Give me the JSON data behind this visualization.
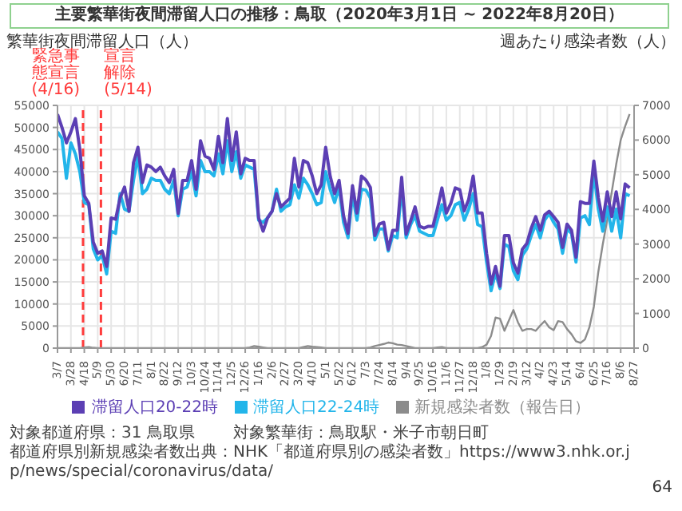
{
  "chart_data": {
    "type": "line",
    "title": "主要繁華街夜間滞留人口の推移：鳥取（2020年3月1日 ~ 2022年8月20日）",
    "ylabel": "繁華街夜間滞留人口（人）",
    "y2label": "週あたり感染者数（人）",
    "x": [
      "2020-03-07",
      "2020-03-14",
      "2020-03-21",
      "2020-03-28",
      "2020-04-04",
      "2020-04-11",
      "2020-04-18",
      "2020-04-25",
      "2020-05-02",
      "2020-05-09",
      "2020-05-16",
      "2020-05-23",
      "2020-05-30",
      "2020-06-06",
      "2020-06-13",
      "2020-06-20",
      "2020-06-27",
      "2020-07-04",
      "2020-07-11",
      "2020-07-18",
      "2020-07-25",
      "2020-08-01",
      "2020-08-08",
      "2020-08-15",
      "2020-08-22",
      "2020-08-29",
      "2020-09-05",
      "2020-09-12",
      "2020-09-19",
      "2020-09-26",
      "2020-10-03",
      "2020-10-10",
      "2020-10-17",
      "2020-10-24",
      "2020-10-31",
      "2020-11-07",
      "2020-11-14",
      "2020-11-21",
      "2020-11-28",
      "2020-12-05",
      "2020-12-12",
      "2020-12-19",
      "2020-12-26",
      "2021-01-02",
      "2021-01-09",
      "2021-01-16",
      "2021-01-23",
      "2021-01-30",
      "2021-02-06",
      "2021-02-13",
      "2021-02-20",
      "2021-02-27",
      "2021-03-06",
      "2021-03-13",
      "2021-03-20",
      "2021-03-27",
      "2021-04-03",
      "2021-04-10",
      "2021-04-17",
      "2021-04-24",
      "2021-05-01",
      "2021-05-08",
      "2021-05-15",
      "2021-05-22",
      "2021-05-29",
      "2021-06-05",
      "2021-06-12",
      "2021-06-19",
      "2021-06-26",
      "2021-07-03",
      "2021-07-10",
      "2021-07-17",
      "2021-07-24",
      "2021-07-31",
      "2021-08-07",
      "2021-08-14",
      "2021-08-21",
      "2021-08-28",
      "2021-09-04",
      "2021-09-11",
      "2021-09-18",
      "2021-09-25",
      "2021-10-02",
      "2021-10-09",
      "2021-10-16",
      "2021-10-23",
      "2021-10-30",
      "2021-11-06",
      "2021-11-13",
      "2021-11-20",
      "2021-11-27",
      "2021-12-04",
      "2021-12-11",
      "2021-12-18",
      "2021-12-25",
      "2022-01-01",
      "2022-01-08",
      "2022-01-15",
      "2022-01-22",
      "2022-01-29",
      "2022-02-05",
      "2022-02-12",
      "2022-02-19",
      "2022-02-26",
      "2022-03-05",
      "2022-03-12",
      "2022-03-19",
      "2022-03-26",
      "2022-04-02",
      "2022-04-09",
      "2022-04-16",
      "2022-04-23",
      "2022-04-30",
      "2022-05-07",
      "2022-05-14",
      "2022-05-21",
      "2022-05-28",
      "2022-06-04",
      "2022-06-11",
      "2022-06-18",
      "2022-06-25",
      "2022-07-02",
      "2022-07-09",
      "2022-07-16",
      "2022-07-23",
      "2022-07-30",
      "2022-08-06",
      "2022-08-13",
      "2022-08-20"
    ],
    "series": [
      {
        "name": "滞留人口20-22時",
        "color": "#5c3fb4",
        "values": [
          53000,
          50000,
          46500,
          49000,
          52000,
          45000,
          34500,
          32800,
          24000,
          21500,
          22000,
          18500,
          29500,
          29200,
          34000,
          36500,
          31000,
          42000,
          45500,
          37500,
          41500,
          41000,
          40000,
          41000,
          39000,
          37500,
          40500,
          30500,
          38000,
          38000,
          42500,
          36000,
          47000,
          43500,
          43000,
          40500,
          48000,
          42000,
          52000,
          42500,
          49000,
          39500,
          43000,
          42500,
          42500,
          29500,
          26500,
          29500,
          31000,
          35000,
          32000,
          33000,
          34000,
          43000,
          36500,
          42500,
          42000,
          39000,
          35000,
          37000,
          45500,
          39000,
          35000,
          38000,
          30000,
          26000,
          36800,
          30600,
          39000,
          38100,
          36400,
          25500,
          28100,
          28500,
          22400,
          26700,
          26700,
          38700,
          25800,
          28800,
          32000,
          27600,
          27200,
          27600,
          27600,
          31600,
          36300,
          30600,
          32800,
          36300,
          35900,
          31100,
          33700,
          39000,
          30600,
          30600,
          21500,
          14500,
          18500,
          14000,
          25500,
          25500,
          19300,
          17000,
          22400,
          23700,
          27200,
          29800,
          26700,
          30200,
          31000,
          29800,
          28500,
          22800,
          28100,
          26700,
          20600,
          33200,
          32800,
          32800,
          42400,
          34100,
          28800,
          35400,
          29800,
          35400,
          29300,
          37200,
          36300
        ]
      },
      {
        "name": "滞留人口22-24時",
        "color": "#22b5ea",
        "values": [
          49000,
          47500,
          38500,
          46500,
          44000,
          40000,
          33000,
          32500,
          22500,
          20000,
          21000,
          16800,
          26500,
          26000,
          35000,
          31500,
          31000,
          38000,
          43500,
          35000,
          36000,
          38500,
          38000,
          38000,
          36000,
          35000,
          38000,
          30000,
          36000,
          36500,
          40000,
          34500,
          42500,
          40000,
          40000,
          39000,
          44000,
          39500,
          47000,
          40000,
          44500,
          38500,
          41500,
          41000,
          40500,
          29000,
          28500,
          29500,
          31000,
          36000,
          31000,
          32000,
          32500,
          37000,
          34000,
          38500,
          37000,
          35000,
          32500,
          33000,
          40000,
          36000,
          33000,
          36500,
          28500,
          25000,
          34800,
          29000,
          36000,
          35800,
          34000,
          24500,
          27000,
          27000,
          22000,
          25500,
          25000,
          36500,
          25000,
          28000,
          30000,
          26500,
          26000,
          25500,
          25500,
          29000,
          32500,
          29000,
          30000,
          32500,
          33000,
          29000,
          31500,
          35000,
          28000,
          27500,
          19500,
          13000,
          17000,
          13500,
          23500,
          23000,
          17500,
          15500,
          21000,
          22500,
          25500,
          28000,
          25000,
          29000,
          30500,
          28500,
          27000,
          21500,
          27000,
          26000,
          19500,
          29500,
          30000,
          28000,
          40000,
          31500,
          26500,
          32000,
          26500,
          31500,
          25000,
          35000,
          34500
        ]
      },
      {
        "name": "新規感染者数（報告日）",
        "color": "#8c8c8c",
        "axis": "y2",
        "values": [
          0,
          0,
          0,
          0,
          0,
          0,
          20,
          30,
          10,
          0,
          0,
          0,
          0,
          0,
          0,
          0,
          0,
          0,
          0,
          0,
          0,
          0,
          0,
          0,
          0,
          0,
          0,
          0,
          0,
          0,
          0,
          0,
          0,
          0,
          0,
          0,
          0,
          0,
          0,
          0,
          0,
          0,
          0,
          20,
          60,
          40,
          20,
          0,
          0,
          0,
          0,
          0,
          0,
          0,
          0,
          30,
          60,
          40,
          30,
          20,
          0,
          0,
          0,
          0,
          0,
          0,
          0,
          0,
          0,
          0,
          20,
          60,
          90,
          120,
          160,
          140,
          100,
          90,
          60,
          30,
          0,
          0,
          0,
          0,
          0,
          20,
          30,
          0,
          0,
          0,
          0,
          0,
          0,
          0,
          0,
          30,
          100,
          350,
          880,
          850,
          500,
          800,
          1100,
          750,
          500,
          550,
          550,
          500,
          650,
          780,
          600,
          520,
          780,
          750,
          550,
          400,
          200,
          150,
          250,
          600,
          1200,
          2200,
          3000,
          3700,
          4500,
          5300,
          6000,
          6400,
          6750
        ]
      }
    ],
    "xlim": [
      "2020-03-07",
      "2022-08-27"
    ],
    "xticks": [
      {
        "value": "2020-03-07",
        "label": "3/7"
      },
      {
        "value": "2020-03-28",
        "label": "3/28"
      },
      {
        "value": "2020-04-18",
        "label": "4/18"
      },
      {
        "value": "2020-05-09",
        "label": "5/9"
      },
      {
        "value": "2020-05-30",
        "label": "5/30"
      },
      {
        "value": "2020-06-20",
        "label": "6/20"
      },
      {
        "value": "2020-07-11",
        "label": "7/11"
      },
      {
        "value": "2020-08-01",
        "label": "8/1"
      },
      {
        "value": "2020-08-22",
        "label": "8/22"
      },
      {
        "value": "2020-09-12",
        "label": "9/12"
      },
      {
        "value": "2020-10-03",
        "label": "10/3"
      },
      {
        "value": "2020-10-24",
        "label": "10/24"
      },
      {
        "value": "2020-11-14",
        "label": "11/14"
      },
      {
        "value": "2020-12-05",
        "label": "12/5"
      },
      {
        "value": "2020-12-26",
        "label": "12/26"
      },
      {
        "value": "2021-01-16",
        "label": "1/16"
      },
      {
        "value": "2021-02-06",
        "label": "2/6"
      },
      {
        "value": "2021-02-27",
        "label": "2/27"
      },
      {
        "value": "2021-03-20",
        "label": "3/20"
      },
      {
        "value": "2021-04-10",
        "label": "4/10"
      },
      {
        "value": "2021-05-01",
        "label": "5/1"
      },
      {
        "value": "2021-05-22",
        "label": "5/22"
      },
      {
        "value": "2021-06-12",
        "label": "6/12"
      },
      {
        "value": "2021-07-03",
        "label": "7/3"
      },
      {
        "value": "2021-07-24",
        "label": "7/24"
      },
      {
        "value": "2021-08-14",
        "label": "8/14"
      },
      {
        "value": "2021-09-04",
        "label": "9/4"
      },
      {
        "value": "2021-09-25",
        "label": "9/25"
      },
      {
        "value": "2021-10-16",
        "label": "10/16"
      },
      {
        "value": "2021-11-06",
        "label": "11/6"
      },
      {
        "value": "2021-11-27",
        "label": "11/27"
      },
      {
        "value": "2021-12-18",
        "label": "12/18"
      },
      {
        "value": "2022-01-08",
        "label": "1/8"
      },
      {
        "value": "2022-01-29",
        "label": "1/29"
      },
      {
        "value": "2022-02-19",
        "label": "2/19"
      },
      {
        "value": "2022-03-12",
        "label": "3/12"
      },
      {
        "value": "2022-04-02",
        "label": "4/2"
      },
      {
        "value": "2022-04-23",
        "label": "4/23"
      },
      {
        "value": "2022-05-14",
        "label": "5/14"
      },
      {
        "value": "2022-06-04",
        "label": "6/4"
      },
      {
        "value": "2022-06-25",
        "label": "6/25"
      },
      {
        "value": "2022-07-16",
        "label": "7/16"
      },
      {
        "value": "2022-08-06",
        "label": "8/6"
      },
      {
        "value": "2022-08-27",
        "label": "8/27"
      }
    ],
    "ylim": [
      0,
      55000
    ],
    "yticks": [
      0,
      5000,
      10000,
      15000,
      20000,
      25000,
      30000,
      35000,
      40000,
      45000,
      50000,
      55000
    ],
    "y2lim": [
      0,
      7000
    ],
    "y2ticks": [
      0,
      1000,
      2000,
      3000,
      4000,
      5000,
      6000,
      7000
    ],
    "ref_lines": [
      {
        "axis": "x",
        "value": "2020-04-16",
        "label": "緊急事態宣言(4/16)",
        "color": "#ff3b3b",
        "line_style": "dashed"
      },
      {
        "axis": "x",
        "value": "2020-05-14",
        "label": "宣言解除(5/14)",
        "color": "#ff3b3b",
        "line_style": "dashed"
      }
    ],
    "annotations": [
      "対象都道府県：31 鳥取県",
      "対象繁華街：鳥取駅・米子市朝日町",
      "都道府県別新規感染者数出典：NHK「都道府県別の感染者数」https://www3.nhk.or.jp/news/special/coronavirus/data/",
      "64"
    ],
    "grid": true,
    "legend": "bottom",
    "marker": "none",
    "line_style": "solid"
  }
}
